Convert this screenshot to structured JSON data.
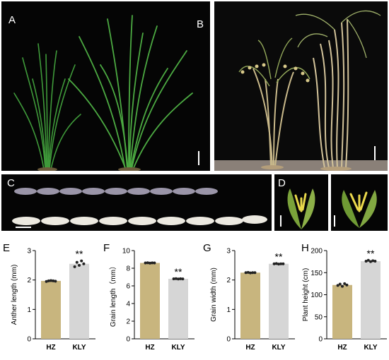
{
  "figure": {
    "panel_labels": {
      "A": "A",
      "B": "B",
      "C": "C",
      "D": "D",
      "E": "E",
      "F": "F",
      "G": "G",
      "H": "H"
    }
  },
  "colors": {
    "hz_bar": "#c8b57e",
    "kly_bar": "#d6d6d6",
    "photo_bg": "#050505",
    "leaf_green": "#3f9a3a",
    "straw": "#cdbd8a"
  },
  "chart_data": [
    {
      "panel": "E",
      "type": "bar",
      "categories": [
        "HZ",
        "KLY"
      ],
      "values": [
        1.97,
        2.55
      ],
      "ylabel": "Anther  length (mm)",
      "ylim": [
        0,
        3
      ],
      "yticks": [
        0,
        1,
        2,
        3
      ],
      "significance": {
        "KLY": "**"
      },
      "points": {
        "HZ": [
          1.95,
          1.97,
          1.98,
          1.97,
          1.96
        ],
        "KLY": [
          2.45,
          2.6,
          2.5,
          2.65,
          2.55
        ]
      }
    },
    {
      "panel": "F",
      "type": "bar",
      "categories": [
        "HZ",
        "KLY"
      ],
      "values": [
        8.6,
        6.8
      ],
      "ylabel": "Grain length（mm）",
      "ylim": [
        0,
        10
      ],
      "yticks": [
        0,
        2,
        4,
        6,
        8,
        10
      ],
      "significance": {
        "KLY": "**"
      },
      "points": {
        "HZ": [
          8.6,
          8.62,
          8.58,
          8.61,
          8.6
        ],
        "KLY": [
          6.8,
          6.82,
          6.78,
          6.81,
          6.79
        ]
      }
    },
    {
      "panel": "G",
      "type": "bar",
      "categories": [
        "HZ",
        "KLY"
      ],
      "values": [
        2.25,
        2.55
      ],
      "ylabel": "Grain width (mm)",
      "ylim": [
        0,
        3
      ],
      "yticks": [
        0,
        1,
        2,
        3
      ],
      "significance": {
        "KLY": "**"
      },
      "points": {
        "HZ": [
          2.25,
          2.26,
          2.24,
          2.25,
          2.25
        ],
        "KLY": [
          2.55,
          2.56,
          2.54,
          2.55,
          2.55
        ]
      }
    },
    {
      "panel": "H",
      "type": "bar",
      "categories": [
        "HZ",
        "KLY"
      ],
      "values": [
        122,
        176
      ],
      "ylabel": "Plant height (cm)",
      "ylim": [
        0,
        200
      ],
      "yticks": [
        0,
        50,
        100,
        150,
        200
      ],
      "significance": {
        "KLY": "**"
      },
      "points": {
        "HZ": [
          121,
          124,
          119,
          125,
          122
        ],
        "KLY": [
          176,
          178,
          175,
          177,
          176
        ]
      }
    }
  ]
}
